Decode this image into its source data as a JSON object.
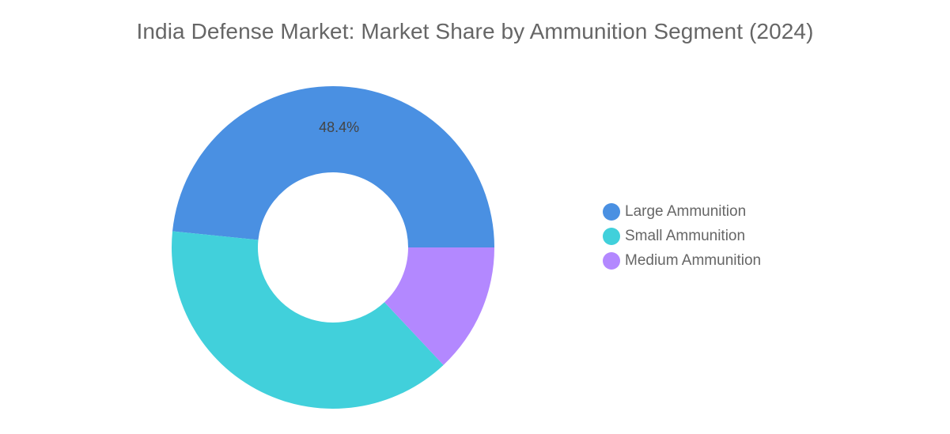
{
  "chart_data": {
    "type": "pie",
    "title": "India Defense Market: Market Share by Ammunition Segment (2024)",
    "donut": true,
    "legend_position": "right",
    "slices": [
      {
        "name": "Large Ammunition",
        "value": 48.4,
        "label": "48.4%",
        "color": "#4A90E2"
      },
      {
        "name": "Small Ammunition",
        "value": 38.6,
        "label": "",
        "color": "#41D0DB"
      },
      {
        "name": "Medium Ammunition",
        "value": 13.0,
        "label": "",
        "color": "#B388FF"
      }
    ]
  }
}
